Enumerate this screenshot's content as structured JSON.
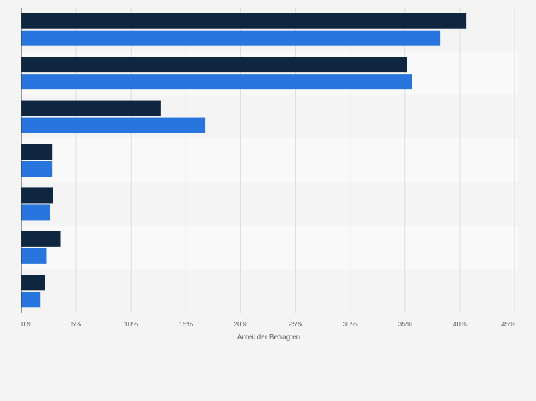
{
  "chart_data": {
    "type": "bar",
    "orientation": "horizontal",
    "title": "",
    "xlabel": "Anteil der Befragten",
    "ylabel": "",
    "xlim": [
      0,
      45
    ],
    "x_ticks": [
      0,
      5,
      10,
      15,
      20,
      25,
      30,
      35,
      40,
      45
    ],
    "x_tick_labels": [
      "0%",
      "5%",
      "10%",
      "15%",
      "20%",
      "25%",
      "30%",
      "35%",
      "40%",
      "45%"
    ],
    "grid": true,
    "categories": [
      "",
      "",
      "",
      "",
      "",
      "",
      ""
    ],
    "series": [
      {
        "name": "",
        "color": "#0f2641",
        "values": [
          40.6,
          35.2,
          12.7,
          2.8,
          2.9,
          3.6,
          2.2
        ]
      },
      {
        "name": "",
        "color": "#2876dd",
        "values": [
          38.2,
          35.6,
          16.8,
          2.8,
          2.6,
          2.3,
          1.7
        ]
      }
    ]
  }
}
